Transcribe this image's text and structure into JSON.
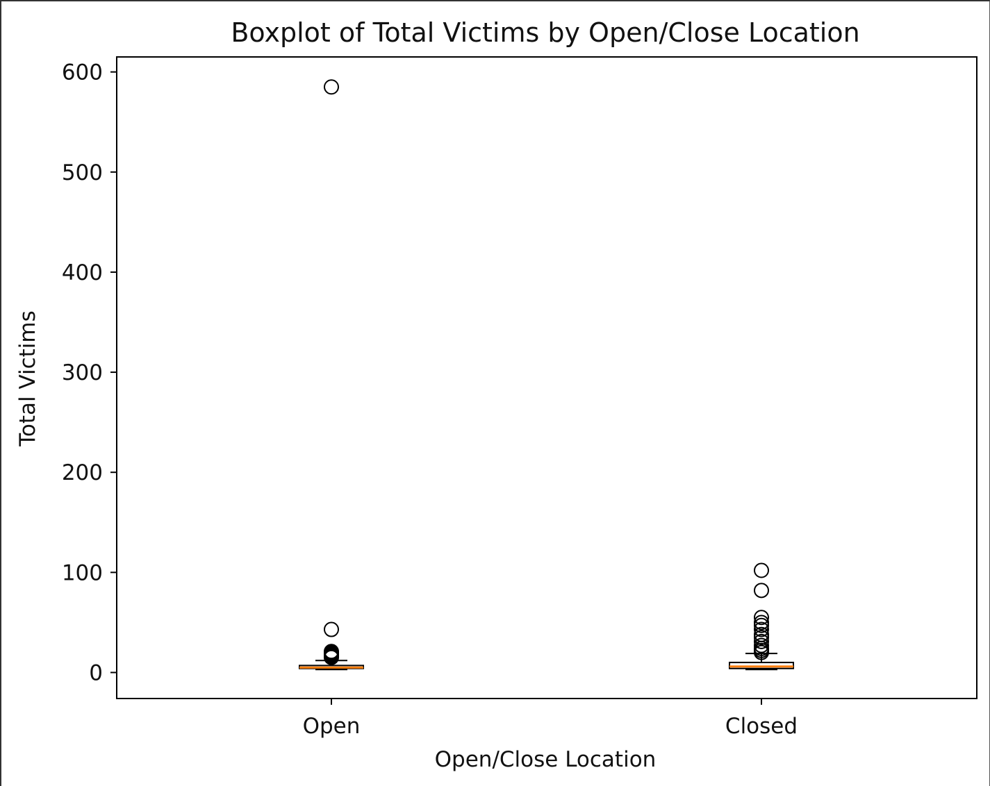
{
  "chart_data": {
    "type": "boxplot",
    "title": "Boxplot of Total Victims by Open/Close Location",
    "xlabel": "Open/Close Location",
    "ylabel": "Total Victims",
    "ylim": [
      -26,
      615
    ],
    "yticks": [
      0,
      100,
      200,
      300,
      400,
      500,
      600
    ],
    "ytick_labels": [
      "0",
      "100",
      "200",
      "300",
      "400",
      "500",
      "600"
    ],
    "categories": [
      "Open",
      "Closed"
    ],
    "grid": false,
    "legend": "none",
    "colors": {
      "box": "#000000",
      "median": "#ff7f0e",
      "flier": "#000000"
    },
    "boxes": [
      {
        "category": "Open",
        "whisker_low": 3,
        "q1": 4,
        "median": 5,
        "q3": 7,
        "whisker_high": 12,
        "outliers": [
          585,
          43,
          21,
          20,
          19,
          18,
          17,
          16,
          15
        ]
      },
      {
        "category": "Closed",
        "whisker_low": 3,
        "q1": 4,
        "median": 6,
        "q3": 10,
        "whisker_high": 19,
        "outliers": [
          102,
          82,
          55,
          50,
          47,
          43,
          38,
          35,
          31,
          27,
          24,
          22,
          20
        ]
      }
    ]
  }
}
